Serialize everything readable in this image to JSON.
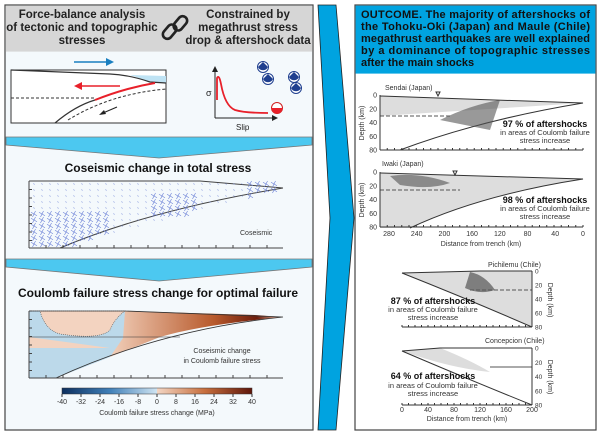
{
  "left_panel": {
    "header": {
      "left_lines": [
        "Force-balance analysis",
        "of tectonic and topographic",
        "stresses"
      ],
      "link_icon": "chain-link-icon",
      "right_lines": [
        "Constrained by",
        "megathrust stress",
        "drop & aftershock data"
      ]
    },
    "stress_drop_graph": {
      "y_label": "σ",
      "x_label": "Slip"
    },
    "coseismic_section": {
      "title": "Coseismic change in total stress",
      "label": "Coseismic"
    },
    "coulomb_section": {
      "title": "Coulomb failure stress change for optimal failure",
      "label_lines": [
        "Coseismic change",
        "in Coulomb failure stress"
      ],
      "colorbar": {
        "ticks": [
          "-40",
          "-32",
          "-24",
          "-16",
          "-8",
          "0",
          "8",
          "16",
          "24",
          "32",
          "40"
        ],
        "label": "Coulomb failure stress change (MPa)",
        "negative_color": "#1a4f8a",
        "positive_color": "#7a1e0e"
      }
    }
  },
  "right_panel": {
    "outcome_lines": [
      "OUTCOME. The majority of aftershocks of",
      "the Tohoku-Oki (Japan) and Maule (Chile)",
      "megathrust earthquakes are well explained",
      "by a dominance of topographic stresses",
      "after the main shocks"
    ],
    "japan": {
      "depth_label": "Depth (km)",
      "depth_ticks": [
        "0",
        "20",
        "40",
        "60",
        "80"
      ],
      "distance_ticks": [
        "280",
        "240",
        "200",
        "160",
        "120",
        "80",
        "40",
        "0"
      ],
      "distance_label": "Distance from trench (km)",
      "profiles": [
        {
          "name": "Sendai (Japan)",
          "percent": "97 % of aftershocks",
          "note_lines": [
            "in areas of Coulomb failure",
            "stress increase"
          ]
        },
        {
          "name": "Iwaki (Japan)",
          "percent": "98 % of aftershocks",
          "note_lines": [
            "in areas of Coulomb failure",
            "stress increase"
          ]
        }
      ]
    },
    "chile": {
      "depth_label": "Depth (km)",
      "depth_ticks": [
        "0",
        "20",
        "40",
        "60",
        "80"
      ],
      "distance_ticks": [
        "0",
        "40",
        "80",
        "120",
        "160",
        "200"
      ],
      "distance_label": "Distance from trench (km)",
      "profiles": [
        {
          "name": "Pichilemu (Chile)",
          "percent": "87 % of aftershocks",
          "note_lines": [
            "in areas of Coulomb failure",
            "stress increase"
          ]
        },
        {
          "name": "Concepcion (Chile)",
          "percent": "64 % of aftershocks",
          "note_lines": [
            "in areas of Coulomb failure",
            "stress increase"
          ]
        }
      ]
    }
  },
  "colors": {
    "accent_blue": "#00a3e0",
    "arrow_light_blue": "#4cc8f0",
    "header_gray": "#d6d6d6",
    "fault_red": "#e8202a"
  }
}
